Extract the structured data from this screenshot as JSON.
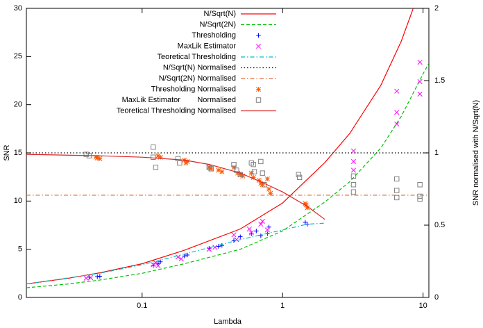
{
  "chart_data": {
    "type": "line",
    "x_label": "Lambda",
    "y_label": "SNR",
    "y2_label": "SNR normalised with N/Sqrt(N)",
    "xscale": "log",
    "xlim": [
      0.015,
      11
    ],
    "xticks": [
      0.1,
      1,
      10
    ],
    "ylim": [
      0,
      30
    ],
    "yticks": [
      0,
      5,
      10,
      15,
      20,
      25,
      30
    ],
    "y2lim": [
      0,
      2
    ],
    "y2ticks": [
      0,
      0.5,
      1,
      1.5,
      2
    ],
    "legend": "top-center",
    "series": [
      {
        "name": "N/Sqrt(N)",
        "color": "#ff0000",
        "style": "solid",
        "x": [
          0.015,
          0.03,
          0.05,
          0.1,
          0.2,
          0.5,
          1,
          2,
          3,
          5,
          7,
          10
        ],
        "values": [
          1.4,
          2.0,
          2.55,
          3.5,
          4.9,
          7.1,
          9.8,
          14,
          17,
          22,
          26.6,
          32.8
        ]
      },
      {
        "name": "N/Sqrt(2N)",
        "color": "#00c000",
        "style": "dashed",
        "x": [
          0.015,
          0.03,
          0.05,
          0.1,
          0.2,
          0.5,
          1,
          2,
          3,
          5,
          7,
          10,
          11
        ],
        "values": [
          1.0,
          1.4,
          1.8,
          2.5,
          3.5,
          5.0,
          6.9,
          9.9,
          12,
          15.5,
          18.8,
          23.2,
          24.3
        ]
      },
      {
        "name": "Thresholding",
        "color": "#0000ff",
        "style": "plus",
        "x": [
          0.042,
          0.048,
          0.05,
          0.12,
          0.13,
          0.135,
          0.2,
          0.21,
          0.3,
          0.35,
          0.37,
          0.45,
          0.5,
          0.6,
          0.65,
          0.7,
          0.78,
          0.8,
          1.45,
          1.5
        ],
        "values": [
          2.1,
          2.15,
          2.2,
          3.3,
          3.5,
          3.7,
          4.3,
          4.4,
          5.1,
          5.3,
          5.4,
          5.9,
          6.3,
          6.6,
          6.9,
          6.4,
          6.6,
          7.3,
          7.8,
          7.6
        ]
      },
      {
        "name": "MaxLik Estimator",
        "color": "#ff00ff",
        "style": "cross",
        "x": [
          0.04,
          0.043,
          0.12,
          0.125,
          0.13,
          0.18,
          0.19,
          0.3,
          0.33,
          0.45,
          0.47,
          0.58,
          0.6,
          0.7,
          0.72,
          0.78,
          3.2,
          3.2,
          3.2,
          6.5,
          6.5,
          6.5,
          9.5,
          9.5,
          9.5
        ],
        "values": [
          2.0,
          2.05,
          3.4,
          3.6,
          3.3,
          4.2,
          4.0,
          5.0,
          5.2,
          6.5,
          6.0,
          7.1,
          6.7,
          7.6,
          7.9,
          7.0,
          15.2,
          14.1,
          13.2,
          21.4,
          19.2,
          18.0,
          24.4,
          22.4,
          21.1
        ]
      },
      {
        "name": "Teoretical Thresholding",
        "color": "#00c0c0",
        "style": "dashdot",
        "x": [
          0.015,
          0.05,
          0.1,
          0.2,
          0.5,
          1,
          1.5,
          2
        ],
        "values": [
          1.4,
          2.5,
          3.4,
          4.5,
          6.0,
          7.0,
          7.6,
          7.7
        ]
      },
      {
        "name": "N/Sqrt(N) Normalised",
        "color": "#000000",
        "style": "dotted",
        "axis": "y2",
        "x": [
          0.015,
          11
        ],
        "values": [
          1,
          1
        ]
      },
      {
        "name": "N/Sqrt(2N) Normalised",
        "color": "#e0703a",
        "style": "dashdot",
        "axis": "y2",
        "x": [
          0.015,
          11
        ],
        "values": [
          0.707,
          0.707
        ]
      },
      {
        "name": "Thresholding Normalised",
        "color": "#ff5a00",
        "style": "star",
        "axis": "y2",
        "x": [
          0.047,
          0.05,
          0.048,
          0.13,
          0.135,
          0.2,
          0.21,
          0.205,
          0.3,
          0.31,
          0.35,
          0.37,
          0.45,
          0.48,
          0.5,
          0.52,
          0.6,
          0.62,
          0.68,
          0.7,
          0.72,
          0.78,
          0.8,
          0.82,
          1.45,
          1.47,
          1.5
        ],
        "values": [
          0.97,
          0.96,
          0.965,
          0.98,
          0.97,
          0.95,
          0.94,
          0.93,
          0.9,
          0.89,
          0.88,
          0.87,
          0.9,
          0.86,
          0.85,
          0.84,
          0.86,
          0.83,
          0.81,
          0.79,
          0.78,
          0.82,
          0.75,
          0.72,
          0.65,
          0.64,
          0.62
        ]
      },
      {
        "name": "MaxLik Estimator        Normalised",
        "color": "#808080",
        "style": "square",
        "axis": "y2",
        "x": [
          0.04,
          0.042,
          0.12,
          0.12,
          0.125,
          0.18,
          0.185,
          0.3,
          0.31,
          0.45,
          0.47,
          0.5,
          0.6,
          0.62,
          0.63,
          0.7,
          0.72,
          0.74,
          1.3,
          1.32,
          3.2,
          3.2,
          3.2,
          6.5,
          6.5,
          6.5,
          9.5,
          9.5,
          9.5
        ],
        "values": [
          0.99,
          0.98,
          1.04,
          0.97,
          0.9,
          0.96,
          0.93,
          0.9,
          0.89,
          0.92,
          0.88,
          0.85,
          0.93,
          0.92,
          0.87,
          0.94,
          0.86,
          0.78,
          0.85,
          0.83,
          0.84,
          0.78,
          0.73,
          0.82,
          0.74,
          0.69,
          0.78,
          0.7,
          0.68
        ]
      },
      {
        "name": "Teoretical Thresholding Normalised",
        "color": "#dd2222",
        "style": "solid",
        "axis": "y2",
        "x": [
          0.015,
          0.05,
          0.1,
          0.2,
          0.3,
          0.5,
          0.7,
          1,
          1.5,
          2
        ],
        "values": [
          0.99,
          0.98,
          0.97,
          0.95,
          0.92,
          0.86,
          0.8,
          0.73,
          0.63,
          0.54
        ]
      }
    ]
  }
}
